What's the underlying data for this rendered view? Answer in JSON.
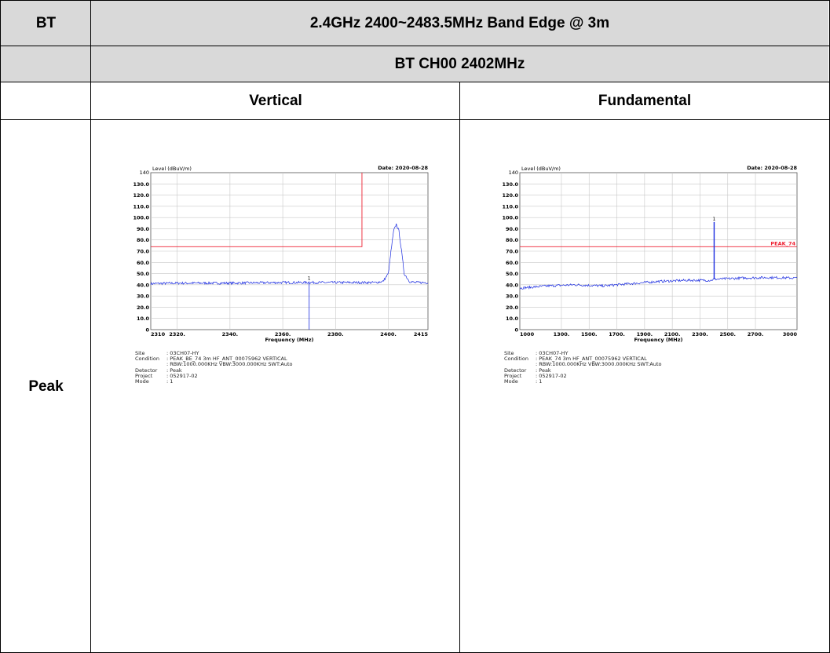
{
  "table": {
    "corner": "BT",
    "title": "2.4GHz 2400~2483.5MHz Band Edge @ 3m",
    "subtitle": "BT CH00 2402MHz",
    "col_left": "Vertical",
    "col_right": "Fundamental",
    "row_label": "Peak"
  },
  "plots": [
    {
      "ylabel": "Level (dBuV/m)",
      "date": "Date: 2020-08-28",
      "xlabel": "Frequency (MHz)",
      "ytop": "140",
      "yticks": [
        "130.0",
        "120.0",
        "110.0",
        "100.0",
        "90.0",
        "80.0",
        "70.0",
        "60.0",
        "50.0",
        "40.0",
        "30.0",
        "20.0",
        "10.0",
        "0"
      ],
      "xticks": [
        "2310",
        "2320.",
        "2340.",
        "2360.",
        "2380.",
        "2400.",
        "2415"
      ],
      "marker": "1",
      "limit_label": "",
      "info": [
        {
          "k": "Site",
          "v": ": 03CH07-HY"
        },
        {
          "k": "Condition",
          "v": ": PEAK_BE_74 3m HF_ANT_00075962 VERTICAL"
        },
        {
          "k": "",
          "v": ": RBW:1000.000KHz VBW:3000.000KHz SWT:Auto"
        },
        {
          "k": "Detector",
          "v": ": Peak"
        },
        {
          "k": "Project",
          "v": ": 052917-02"
        },
        {
          "k": "Mode",
          "v": ": 1"
        }
      ]
    },
    {
      "ylabel": "Level (dBuV/m)",
      "date": "Date: 2020-08-28",
      "xlabel": "Frequency (MHz)",
      "ytop": "140",
      "yticks": [
        "130.0",
        "120.0",
        "110.0",
        "100.0",
        "90.0",
        "80.0",
        "70.0",
        "60.0",
        "50.0",
        "40.0",
        "30.0",
        "20.0",
        "10.0",
        "0"
      ],
      "xticks": [
        "1000",
        "1300.",
        "1500.",
        "1700.",
        "1900.",
        "2100.",
        "2300.",
        "2500.",
        "2700.",
        "3000"
      ],
      "marker": "1",
      "limit_label": "PEAK_74",
      "info": [
        {
          "k": "Site",
          "v": ": 03CH07-HY"
        },
        {
          "k": "Condition",
          "v": ": PEAK_74 3m HF_ANT_00075962 VERTICAL"
        },
        {
          "k": "",
          "v": ": RBW:1000.000KHz VBW:3000.000KHz SWT:Auto"
        },
        {
          "k": "Detector",
          "v": ": Peak"
        },
        {
          "k": "Project",
          "v": ": 052917-02"
        },
        {
          "k": "Mode",
          "v": ": 1"
        }
      ]
    }
  ],
  "chart_data": [
    {
      "type": "line",
      "title": "",
      "xlabel": "Frequency (MHz)",
      "ylabel": "Level (dBuV/m)",
      "xlim": [
        2310,
        2415
      ],
      "ylim": [
        0,
        140
      ],
      "limit_line": {
        "level": 74,
        "until_x": 2390,
        "step_to": 140
      },
      "marker": {
        "label": "1",
        "x": 2370,
        "y": 43
      },
      "series": [
        {
          "x": [
            2310,
            2320,
            2340,
            2360,
            2380,
            2395,
            2398,
            2400,
            2401,
            2402,
            2403,
            2404,
            2405,
            2406,
            2408,
            2410,
            2415
          ],
          "y": [
            41,
            41.5,
            41.5,
            42,
            42,
            42,
            43,
            50,
            70,
            88,
            94,
            88,
            70,
            50,
            43,
            42,
            42
          ]
        }
      ],
      "grid": true
    },
    {
      "type": "line",
      "title": "",
      "xlabel": "Frequency (MHz)",
      "ylabel": "Level (dBuV/m)",
      "xlim": [
        1000,
        3000
      ],
      "ylim": [
        0,
        140
      ],
      "limit_line": {
        "level": 74,
        "label": "PEAK_74"
      },
      "marker": {
        "label": "1",
        "x": 2402,
        "y": 96
      },
      "series": [
        {
          "x": [
            1000,
            1200,
            1400,
            1600,
            1800,
            2000,
            2200,
            2380,
            2400,
            2402,
            2404,
            2420,
            2600,
            2800,
            3000
          ],
          "y": [
            37,
            39,
            40,
            39,
            41,
            43,
            44,
            44,
            45,
            96,
            45,
            45,
            46,
            46.5,
            46
          ]
        }
      ],
      "grid": true
    }
  ]
}
